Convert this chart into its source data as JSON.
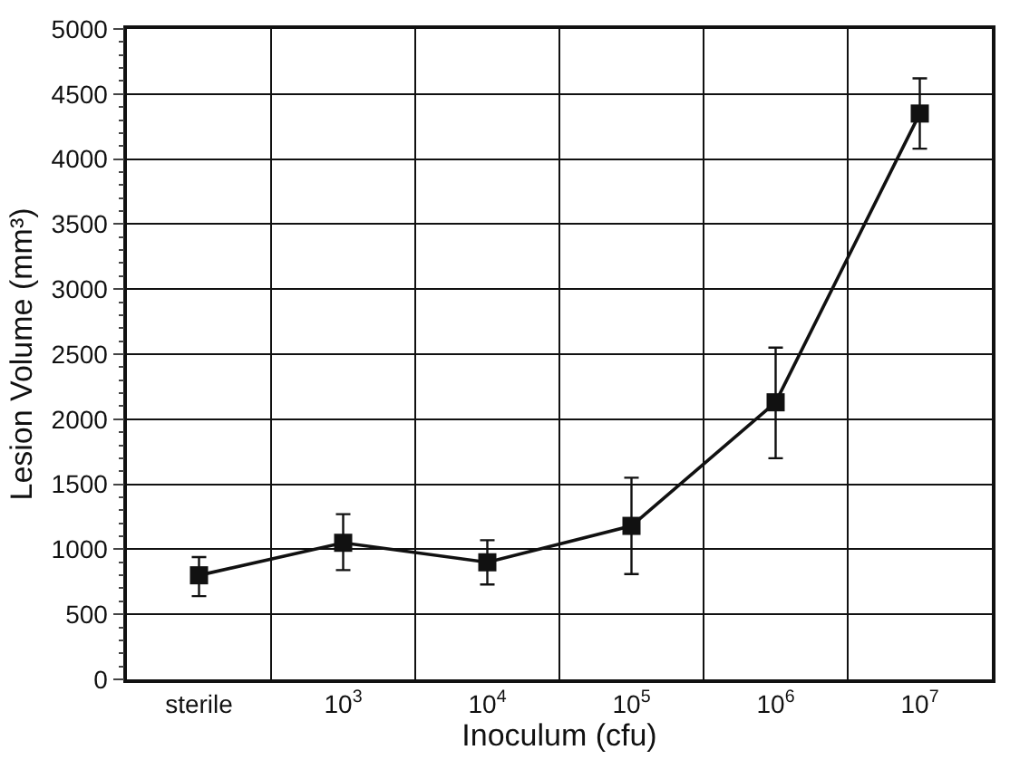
{
  "chart_data": {
    "type": "line",
    "xlabel": "Inoculum (cfu)",
    "ylabel": "Lesion Volume (mm³)",
    "categories": [
      "sterile",
      "10$^{3}$",
      "10$^{4}$",
      "10$^{5}$",
      "10$^{6}$",
      "10$^{7}$"
    ],
    "series": [
      {
        "color": "#111111",
        "values": [
          800,
          1050,
          900,
          1180,
          2130,
          4350
        ],
        "errors": [
          [
            640,
            940
          ],
          [
            840,
            1270
          ],
          [
            730,
            1070
          ],
          [
            810,
            1550
          ],
          [
            1700,
            2550
          ],
          [
            4080,
            4620
          ]
        ]
      }
    ],
    "ylim": [
      0,
      5000
    ],
    "yticks": [
      0,
      500,
      1000,
      1500,
      2000,
      2500,
      3000,
      3500,
      4000,
      4500,
      5000
    ],
    "grid": true,
    "marker": "square",
    "line_style": "solid"
  }
}
